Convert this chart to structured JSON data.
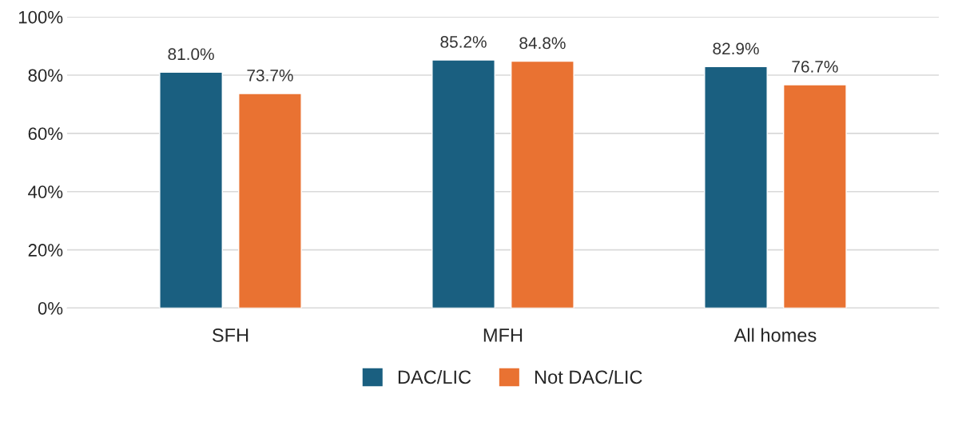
{
  "chart_data": {
    "type": "bar",
    "categories": [
      "SFH",
      "MFH",
      "All homes"
    ],
    "series": [
      {
        "name": "DAC/LIC",
        "color": "#1a5f80",
        "values": [
          81.0,
          85.2,
          82.9
        ],
        "value_labels": [
          "81.0%",
          "85.2%",
          "82.9%"
        ]
      },
      {
        "name": "Not DAC/LIC",
        "color": "#e97232",
        "values": [
          73.7,
          84.8,
          76.7
        ],
        "value_labels": [
          "73.7%",
          "84.8%",
          "76.7%"
        ]
      }
    ],
    "ylim": [
      0,
      100
    ],
    "yticks": [
      {
        "value": 0,
        "label": "0%"
      },
      {
        "value": 20,
        "label": "20%"
      },
      {
        "value": 40,
        "label": "40%"
      },
      {
        "value": 60,
        "label": "60%"
      },
      {
        "value": 80,
        "label": "80%"
      },
      {
        "value": 100,
        "label": "100%"
      }
    ],
    "grid": "y",
    "legend": "bottom"
  }
}
